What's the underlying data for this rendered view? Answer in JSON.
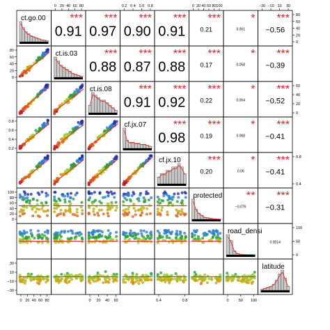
{
  "chart_data": {
    "type": "scatter-matrix",
    "variables": [
      "ct.go.00",
      "ct.is.03",
      "ct.is.08",
      "cf.jx.07",
      "cf.jx.10",
      "protected",
      "road_densi",
      "latitude"
    ],
    "correlations": [
      {
        "row": 0,
        "col": 1,
        "r": "0.91",
        "stars": "***"
      },
      {
        "row": 0,
        "col": 2,
        "r": "0.97",
        "stars": "***"
      },
      {
        "row": 0,
        "col": 3,
        "r": "0.90",
        "stars": "***"
      },
      {
        "row": 0,
        "col": 4,
        "r": "0.91",
        "stars": "***"
      },
      {
        "row": 0,
        "col": 5,
        "r": "0.21",
        "stars": "***"
      },
      {
        "row": 0,
        "col": 6,
        "r": "0.061",
        "stars": "*"
      },
      {
        "row": 0,
        "col": 7,
        "r": "−0.56",
        "stars": "***"
      },
      {
        "row": 1,
        "col": 2,
        "r": "0.88",
        "stars": "***"
      },
      {
        "row": 1,
        "col": 3,
        "r": "0.87",
        "stars": "***"
      },
      {
        "row": 1,
        "col": 4,
        "r": "0.88",
        "stars": "***"
      },
      {
        "row": 1,
        "col": 5,
        "r": "0.17",
        "stars": "***"
      },
      {
        "row": 1,
        "col": 6,
        "r": "0.058",
        "stars": "*"
      },
      {
        "row": 1,
        "col": 7,
        "r": "−0.39",
        "stars": "***"
      },
      {
        "row": 2,
        "col": 3,
        "r": "0.91",
        "stars": "***"
      },
      {
        "row": 2,
        "col": 4,
        "r": "0.92",
        "stars": "***"
      },
      {
        "row": 2,
        "col": 5,
        "r": "0.22",
        "stars": "***"
      },
      {
        "row": 2,
        "col": 6,
        "r": "0.064",
        "stars": "*"
      },
      {
        "row": 2,
        "col": 7,
        "r": "−0.52",
        "stars": "***"
      },
      {
        "row": 3,
        "col": 4,
        "r": "0.98",
        "stars": "***"
      },
      {
        "row": 3,
        "col": 5,
        "r": "0.19",
        "stars": "***"
      },
      {
        "row": 3,
        "col": 6,
        "r": "0.068",
        "stars": "*"
      },
      {
        "row": 3,
        "col": 7,
        "r": "−0.41",
        "stars": "***"
      },
      {
        "row": 4,
        "col": 5,
        "r": "0.20",
        "stars": "***"
      },
      {
        "row": 4,
        "col": 6,
        "r": "0.06",
        "stars": "*"
      },
      {
        "row": 4,
        "col": 7,
        "r": "−0.41",
        "stars": "***"
      },
      {
        "row": 5,
        "col": 6,
        "r": "−0.076",
        "stars": "**"
      },
      {
        "row": 5,
        "col": 7,
        "r": "−0.31",
        "stars": "***"
      },
      {
        "row": 6,
        "col": 7,
        "r": "0.0014",
        "stars": ""
      }
    ],
    "axes": {
      "top": [
        {
          "col": 1,
          "ticks": [
            "0",
            "20",
            "40",
            "60",
            "80"
          ]
        },
        {
          "col": 3,
          "ticks": [
            "0.2",
            "0.4",
            "0.6",
            "0.8"
          ]
        },
        {
          "col": 5,
          "ticks": [
            "0",
            "20",
            "40",
            "60",
            "80",
            "100"
          ]
        },
        {
          "col": 7,
          "ticks": [
            "−30",
            "−10",
            "10",
            "30"
          ]
        }
      ],
      "bottom": [
        {
          "col": 0,
          "ticks": [
            "0",
            "20",
            "40",
            "60",
            "80"
          ]
        },
        {
          "col": 2,
          "ticks": [
            "0",
            "20",
            "40",
            "60"
          ]
        },
        {
          "col": 4,
          "ticks": [
            "0.4",
            "0.8"
          ]
        },
        {
          "col": 6,
          "ticks": [
            "0",
            "50",
            "100"
          ]
        }
      ],
      "left": [
        {
          "row": 1,
          "ticks": [
            "0",
            "20",
            "40",
            "60",
            "80"
          ]
        },
        {
          "row": 3,
          "ticks": [
            "0.2",
            "0.4",
            "0.6",
            "0.8"
          ]
        },
        {
          "row": 5,
          "ticks": [
            "0",
            "20",
            "40",
            "60",
            "80",
            "100"
          ]
        },
        {
          "row": 7,
          "ticks": [
            "−30",
            "−10",
            "10",
            "30"
          ]
        }
      ],
      "right": [
        {
          "row": 0,
          "ticks": [
            "0",
            "20",
            "40",
            "60",
            "80"
          ]
        },
        {
          "row": 2,
          "ticks": [
            "0",
            "20",
            "40",
            "60"
          ]
        },
        {
          "row": 4,
          "ticks": [
            "0.4",
            "0.8"
          ]
        },
        {
          "row": 6,
          "ticks": [
            "0",
            "50",
            "100"
          ]
        }
      ]
    },
    "colors": {
      "stars": "#d62728",
      "smooth_line": "#e8372c",
      "bars": "#c8c8c8",
      "point_palette": [
        "#1f2fa8",
        "#2a7fd0",
        "#2e9e3a",
        "#9acd32",
        "#c8a810",
        "#d2691e",
        "#b22222"
      ]
    },
    "grid": false,
    "legend": "none"
  }
}
